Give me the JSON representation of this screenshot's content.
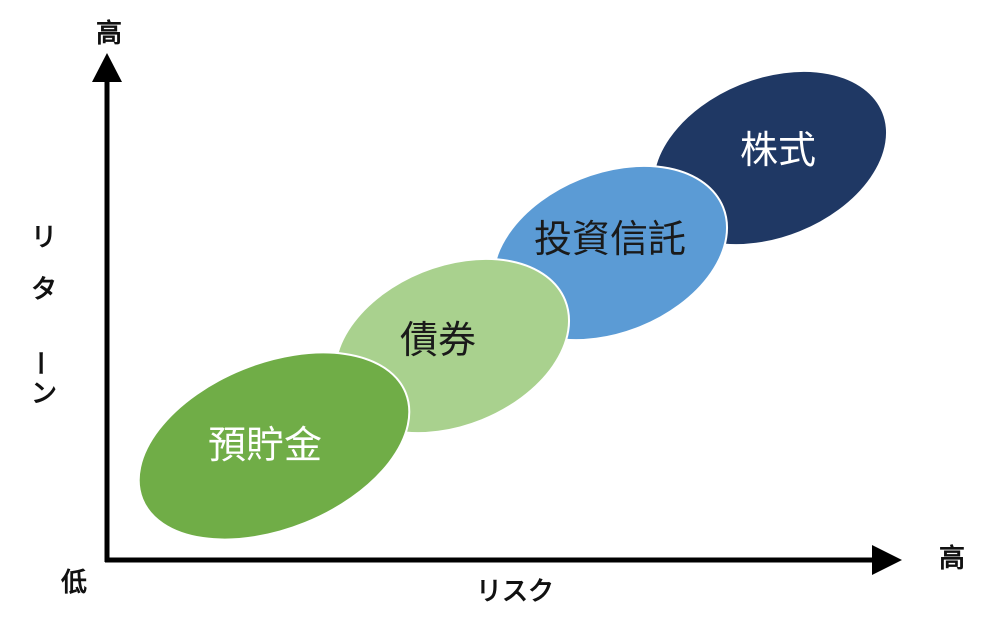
{
  "axes": {
    "y_high_label": "高",
    "y_axis_label": "リターン",
    "origin_label": "低",
    "x_high_label": "高",
    "x_axis_label": "リスク"
  },
  "categories": [
    {
      "key": "deposits",
      "label": "預貯金",
      "fill": "#70ad47",
      "text_color": "#ffffff"
    },
    {
      "key": "bonds",
      "label": "債券",
      "fill": "#a9d18e",
      "text_color": "#1a1a1a"
    },
    {
      "key": "funds",
      "label": "投資信託",
      "fill": "#5b9bd5",
      "text_color": "#1a1a1a"
    },
    {
      "key": "stocks",
      "label": "株式",
      "fill": "#1f3864",
      "text_color": "#ffffff"
    }
  ],
  "colors": {
    "axis": "#000000",
    "ellipse_stroke": "#ffffff"
  }
}
